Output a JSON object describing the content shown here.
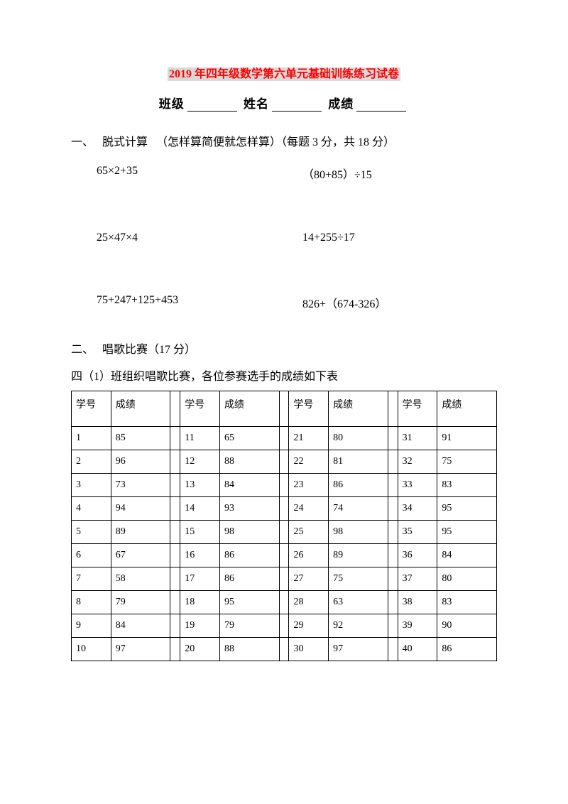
{
  "title": {
    "year": "2019",
    "rest": " 年四年级数学第六单元基础训练练习试卷"
  },
  "subtitle": {
    "class_label": "班级",
    "name_label": "姓名",
    "score_label": "成绩"
  },
  "section1": {
    "number": "一、",
    "name": "脱式计算",
    "note": "（怎样算简便就怎样算）（每题 3 分，共 18 分）",
    "rows": [
      {
        "left": "65×2+35",
        "right": "（80+85）÷15"
      },
      {
        "left": "25×47×4",
        "right": "14+255÷17"
      },
      {
        "left": "75+247+125+453",
        "right": "826+（674-326）"
      }
    ]
  },
  "section2": {
    "number": "二、",
    "name": "唱歌比赛（17 分）",
    "desc": "四（1）班组织唱歌比赛，各位参赛选手的成绩如下表",
    "header_id": "学号",
    "header_score": "成绩",
    "rows": [
      {
        "c1": "1",
        "s1": "85",
        "c2": "11",
        "s2": "65",
        "c3": "21",
        "s3": "80",
        "c4": "31",
        "s4": "91"
      },
      {
        "c1": "2",
        "s1": "96",
        "c2": "12",
        "s2": "88",
        "c3": "22",
        "s3": "81",
        "c4": "32",
        "s4": "75"
      },
      {
        "c1": "3",
        "s1": "73",
        "c2": "13",
        "s2": "84",
        "c3": "23",
        "s3": "86",
        "c4": "33",
        "s4": "83"
      },
      {
        "c1": "4",
        "s1": "94",
        "c2": "14",
        "s2": "93",
        "c3": "24",
        "s3": "74",
        "c4": "34",
        "s4": "95"
      },
      {
        "c1": "5",
        "s1": "89",
        "c2": "15",
        "s2": "98",
        "c3": "25",
        "s3": "98",
        "c4": "35",
        "s4": "95"
      },
      {
        "c1": "6",
        "s1": "67",
        "c2": "16",
        "s2": "86",
        "c3": "26",
        "s3": "89",
        "c4": "36",
        "s4": "84"
      },
      {
        "c1": "7",
        "s1": "58",
        "c2": "17",
        "s2": "86",
        "c3": "27",
        "s3": "75",
        "c4": "37",
        "s4": "80"
      },
      {
        "c1": "8",
        "s1": "79",
        "c2": "18",
        "s2": "95",
        "c3": "28",
        "s3": "63",
        "c4": "38",
        "s4": "83"
      },
      {
        "c1": "9",
        "s1": "84",
        "c2": "19",
        "s2": "79",
        "c3": "29",
        "s3": "92",
        "c4": "39",
        "s4": "90"
      },
      {
        "c1": "10",
        "s1": "97",
        "c2": "20",
        "s2": "88",
        "c3": "30",
        "s3": "97",
        "c4": "40",
        "s4": "86"
      }
    ]
  }
}
